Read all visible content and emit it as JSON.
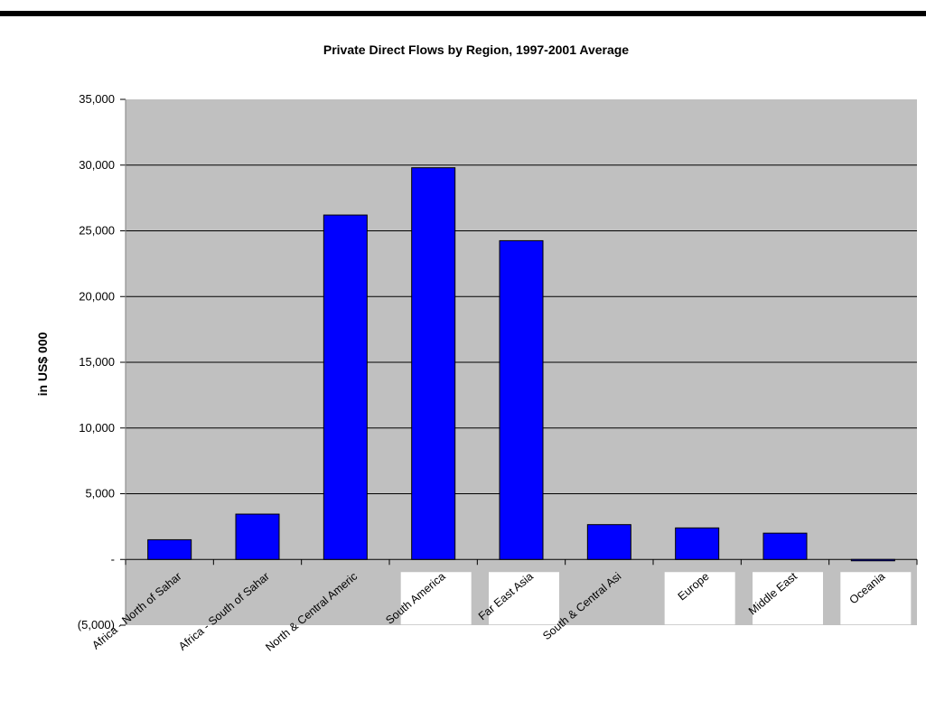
{
  "chart_data": {
    "type": "bar",
    "title": "Private Direct Flows by Region, 1997-2001 Average",
    "xlabel": "",
    "ylabel": "in US$ 000",
    "categories": [
      "Africa - North of Sahar",
      "Africa - South of Sahar",
      "North & Central Americ",
      "South America",
      "Far East Asia",
      "South & Central Asi",
      "Europe",
      "Middle East",
      "Oceania"
    ],
    "values": [
      1500,
      3450,
      26200,
      29800,
      24250,
      2650,
      2400,
      2000,
      -100
    ],
    "ylim": [
      -5000,
      35000
    ],
    "yticks": [
      -5000,
      0,
      5000,
      10000,
      15000,
      20000,
      25000,
      30000,
      35000
    ],
    "ytick_labels": [
      "(5,000)",
      "-",
      "5,000",
      "10,000",
      "15,000",
      "20,000",
      "25,000",
      "30,000",
      "35,000"
    ],
    "grid": true,
    "legend": "none",
    "colors": {
      "bar": "#0000ff",
      "bar_edge": "#000000",
      "plot_background": "#c0c0c0",
      "gridline": "#000000"
    }
  }
}
